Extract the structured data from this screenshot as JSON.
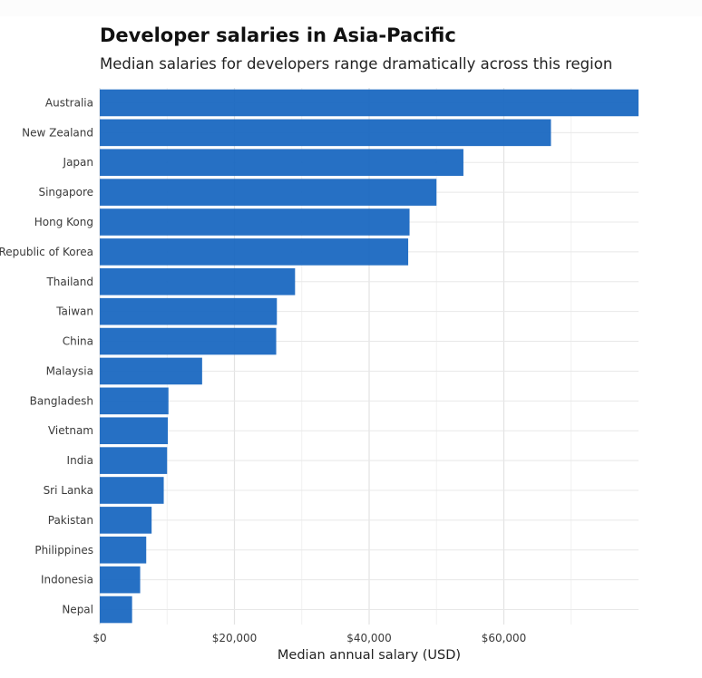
{
  "chart_data": {
    "type": "bar",
    "orientation": "horizontal",
    "title": "Developer salaries in Asia-Pacific",
    "subtitle": "Median salaries for developers range dramatically across this region",
    "xlabel": "Median annual salary (USD)",
    "ylabel": "",
    "xlim": [
      0,
      80000
    ],
    "x_ticks": [
      0,
      20000,
      40000,
      60000
    ],
    "x_tick_labels": [
      "$0",
      "$20,000",
      "$40,000",
      "$60,000"
    ],
    "grid": true,
    "bar_color": "#1565c0",
    "categories": [
      "Australia",
      "New Zealand",
      "Japan",
      "Singapore",
      "Hong Kong",
      "Republic of Korea",
      "Thailand",
      "Taiwan",
      "China",
      "Malaysia",
      "Bangladesh",
      "Vietnam",
      "India",
      "Sri Lanka",
      "Pakistan",
      "Philippines",
      "Indonesia",
      "Nepal"
    ],
    "values": [
      80000,
      67000,
      54000,
      50000,
      46000,
      45800,
      29000,
      26300,
      26200,
      15200,
      10200,
      10100,
      10000,
      9500,
      7700,
      6900,
      6000,
      4800
    ]
  }
}
